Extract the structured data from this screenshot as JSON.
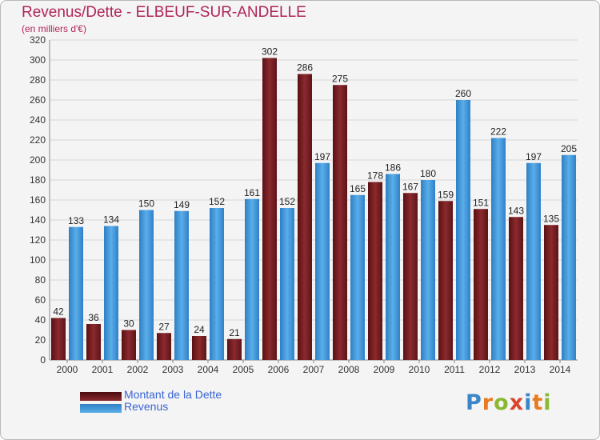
{
  "title": "Revenus/Dette - ELBEUF-SUR-ANDELLE",
  "subtitle": "(en milliers d'€)",
  "logo": "Proxiti",
  "legend": [
    {
      "label": "Montant de la Dette",
      "color": "#7a1f24"
    },
    {
      "label": "Revenus",
      "color": "#3d95d8"
    }
  ],
  "colors": {
    "dette": "#7a1f24",
    "revenus": "#3d95d8",
    "grid": "#d6d6d6"
  },
  "chart_data": {
    "type": "bar",
    "categories": [
      "2000",
      "2001",
      "2002",
      "2003",
      "2004",
      "2005",
      "2006",
      "2007",
      "2008",
      "2009",
      "2010",
      "2011",
      "2012",
      "2013",
      "2014"
    ],
    "series": [
      {
        "name": "Montant de la Dette",
        "values": [
          42,
          36,
          30,
          27,
          24,
          21,
          302,
          286,
          275,
          178,
          167,
          159,
          151,
          143,
          135
        ]
      },
      {
        "name": "Revenus",
        "values": [
          133,
          134,
          150,
          149,
          152,
          161,
          152,
          197,
          165,
          186,
          180,
          260,
          222,
          197,
          205
        ]
      }
    ],
    "ylim": [
      0,
      320
    ],
    "yticks": [
      0,
      20,
      40,
      60,
      80,
      100,
      120,
      140,
      160,
      180,
      200,
      220,
      240,
      260,
      280,
      300,
      320
    ],
    "grid": true,
    "legend_position": "bottom-left"
  }
}
